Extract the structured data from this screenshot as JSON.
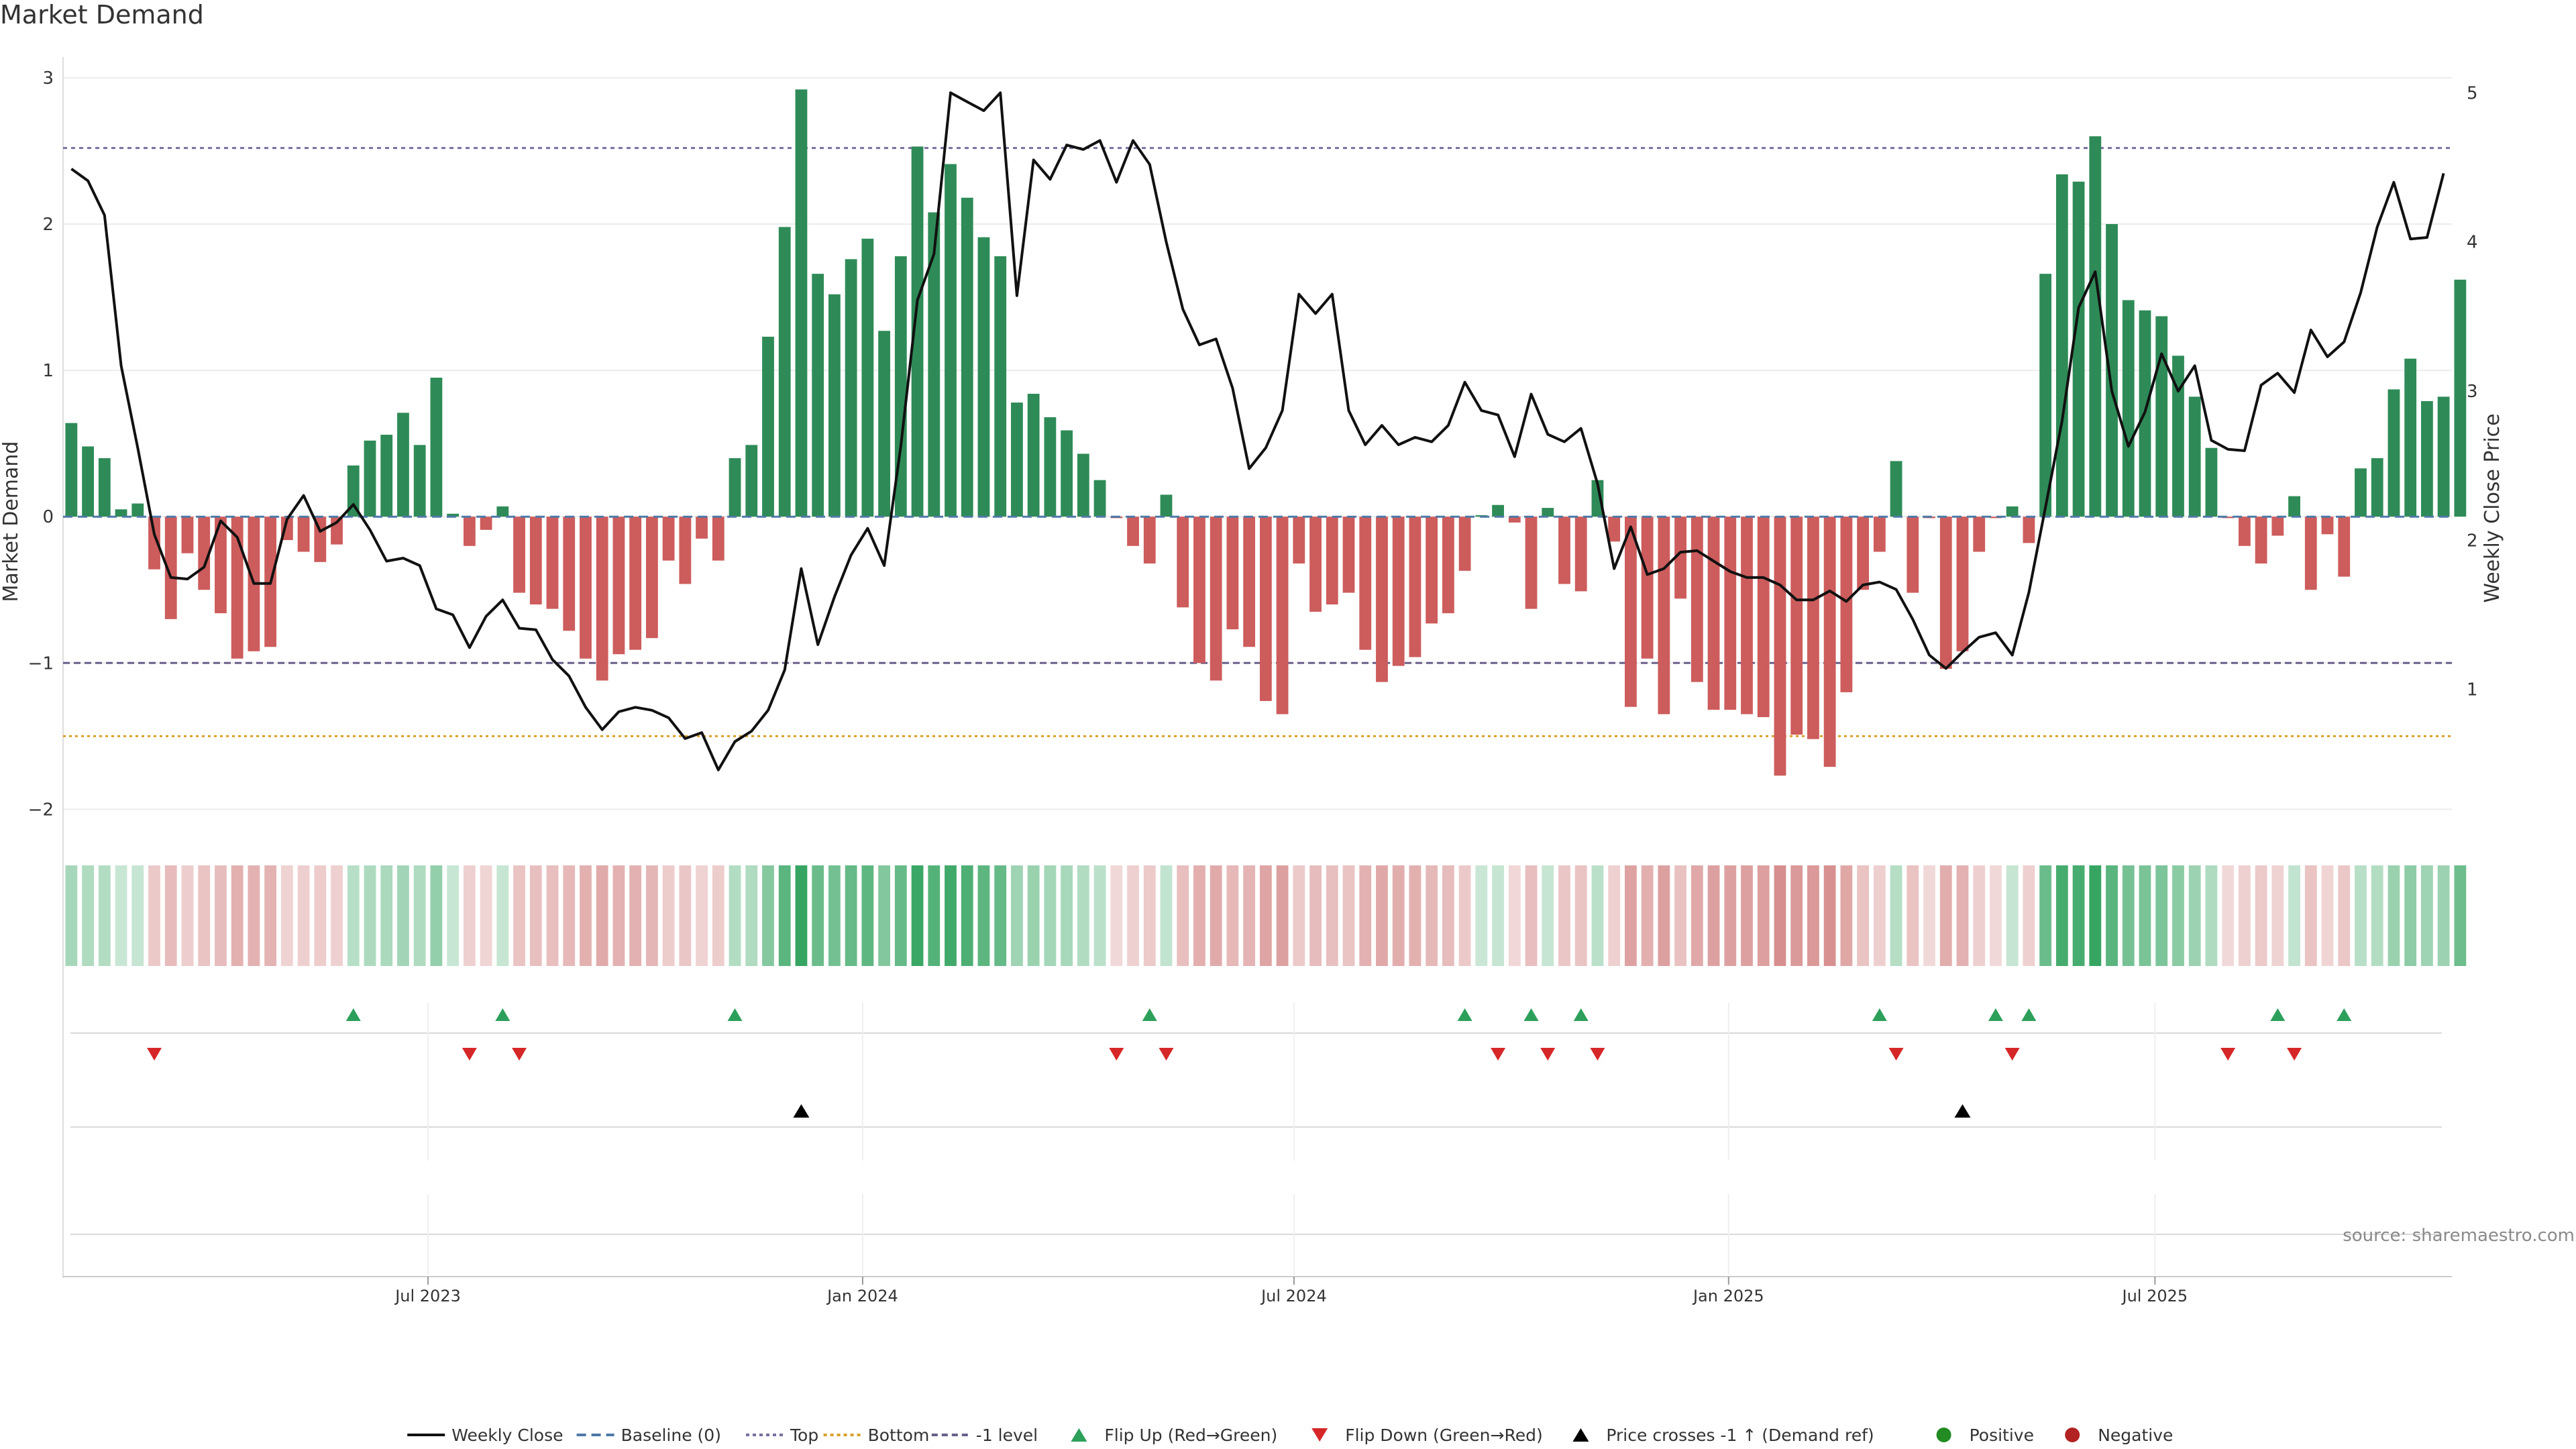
{
  "chart_data": {
    "type": "bar",
    "title": "Market Demand",
    "ylabel": "Market Demand",
    "y2label": "Weekly Close Price",
    "source": "source: sharemaestro.com",
    "ylim": [
      -2.2,
      3.05
    ],
    "y2lim": [
      0.0,
      5.15
    ],
    "yticks": [
      3,
      2,
      1,
      0,
      -1,
      -2
    ],
    "yticklabels": [
      "3",
      "2",
      "1",
      "0",
      "−1",
      "−2"
    ],
    "y2ticks": [
      1,
      2,
      3,
      4,
      5
    ],
    "reference_lines": {
      "top": 2.52,
      "bottom": -1.5,
      "minus_one": -1.0
    },
    "xticks": [
      "Jul 2023",
      "Jan 2024",
      "Jul 2024",
      "Jan 2025",
      "Jul 2025"
    ],
    "xtick_weeks": [
      21.5,
      47.7,
      73.7,
      99.9,
      125.6
    ],
    "weeks": 144,
    "demand": [
      0.64,
      0.48,
      0.4,
      0.05,
      0.09,
      -0.36,
      -0.7,
      -0.25,
      -0.5,
      -0.66,
      -0.97,
      -0.92,
      -0.89,
      -0.16,
      -0.24,
      -0.31,
      -0.19,
      0.35,
      0.52,
      0.56,
      0.71,
      0.49,
      0.95,
      0.02,
      -0.2,
      -0.09,
      0.07,
      -0.52,
      -0.6,
      -0.63,
      -0.78,
      -0.97,
      -1.12,
      -0.94,
      -0.91,
      -0.83,
      -0.3,
      -0.46,
      -0.15,
      -0.3,
      0.4,
      0.49,
      1.23,
      1.98,
      2.92,
      1.66,
      1.52,
      1.76,
      1.9,
      1.27,
      1.78,
      2.53,
      2.08,
      2.41,
      2.18,
      1.91,
      1.78,
      0.78,
      0.84,
      0.68,
      0.59,
      0.43,
      0.25,
      -0.01,
      -0.2,
      -0.32,
      0.15,
      -0.62,
      -1.0,
      -1.12,
      -0.77,
      -0.89,
      -1.26,
      -1.35,
      -0.32,
      -0.65,
      -0.6,
      -0.52,
      -0.91,
      -1.13,
      -1.02,
      -0.96,
      -0.73,
      -0.66,
      -0.37,
      0.01,
      0.08,
      -0.04,
      -0.63,
      0.06,
      -0.46,
      -0.51,
      0.25,
      -0.17,
      -1.3,
      -0.97,
      -1.35,
      -0.56,
      -1.13,
      -1.32,
      -1.32,
      -1.35,
      -1.37,
      -1.77,
      -1.49,
      -1.52,
      -1.71,
      -1.2,
      -0.5,
      -0.24,
      0.38,
      -0.52,
      -0.01,
      -1.04,
      -0.92,
      -0.24,
      -0.01,
      0.07,
      -0.18,
      1.66,
      2.34,
      2.29,
      2.6,
      2.0,
      1.48,
      1.41,
      1.37,
      1.1,
      0.82,
      0.47,
      -0.01,
      -0.2,
      -0.32,
      -0.13,
      0.14,
      -0.5,
      -0.12,
      -0.41,
      0.33,
      0.4,
      0.87,
      1.08,
      0.79,
      0.82,
      1.62
    ],
    "close": [
      4.49,
      4.41,
      4.18,
      3.17,
      2.62,
      2.04,
      1.75,
      1.74,
      1.82,
      2.13,
      2.02,
      1.71,
      1.71,
      2.14,
      2.3,
      2.06,
      2.12,
      2.24,
      2.07,
      1.86,
      1.88,
      1.83,
      1.54,
      1.5,
      1.28,
      1.49,
      1.6,
      1.41,
      1.4,
      1.2,
      1.09,
      0.88,
      0.73,
      0.85,
      0.88,
      0.86,
      0.81,
      0.67,
      0.71,
      0.46,
      0.65,
      0.72,
      0.86,
      1.13,
      1.81,
      1.3,
      1.62,
      1.9,
      2.08,
      1.83,
      2.63,
      3.61,
      3.92,
      5.0,
      4.94,
      4.88,
      5.0,
      3.64,
      4.55,
      4.42,
      4.65,
      4.62,
      4.68,
      4.4,
      4.68,
      4.52,
      4.0,
      3.55,
      3.31,
      3.35,
      3.02,
      2.48,
      2.62,
      2.87,
      3.65,
      3.52,
      3.65,
      2.87,
      2.64,
      2.77,
      2.64,
      2.69,
      2.66,
      2.77,
      3.06,
      2.87,
      2.84,
      2.56,
      2.98,
      2.71,
      2.66,
      2.75,
      2.38,
      1.81,
      2.09,
      1.77,
      1.81,
      1.92,
      1.93,
      1.86,
      1.79,
      1.75,
      1.75,
      1.7,
      1.6,
      1.6,
      1.66,
      1.59,
      1.7,
      1.72,
      1.67,
      1.47,
      1.23,
      1.14,
      1.25,
      1.35,
      1.38,
      1.23,
      1.65,
      2.22,
      2.8,
      3.56,
      3.8,
      3.0,
      2.63,
      2.86,
      3.25,
      3.0,
      3.17,
      2.67,
      2.61,
      2.6,
      3.04,
      3.12,
      2.99,
      3.41,
      3.23,
      3.33,
      3.66,
      4.1,
      4.4,
      4.02,
      4.03,
      4.46
    ],
    "flip_up_weeks": [
      17,
      26,
      40,
      65,
      84,
      88,
      91,
      109,
      116,
      118,
      133,
      137
    ],
    "flip_down_weeks": [
      5,
      24,
      27,
      63,
      66,
      86,
      89,
      92,
      110,
      117,
      130,
      134
    ],
    "price_cross_weeks": [
      44,
      114
    ],
    "legend": [
      {
        "label": "Weekly Close",
        "kind": "line",
        "color": "#111111"
      },
      {
        "label": "Baseline (0)",
        "kind": "dash",
        "color": "#4e79a7"
      },
      {
        "label": "Top",
        "kind": "dot",
        "color": "#7a6fa0"
      },
      {
        "label": "Bottom",
        "kind": "dot",
        "color": "#d9a12a"
      },
      {
        "label": "-1 level",
        "kind": "dash2",
        "color": "#6a5f8a"
      },
      {
        "label": "Flip Up (Red→Green)",
        "kind": "tri-up",
        "color": "#2ca05a"
      },
      {
        "label": "Flip Down (Green→Red)",
        "kind": "tri-down",
        "color": "#d62728"
      },
      {
        "label": "Price crosses -1 ↑ (Demand ref)",
        "kind": "tri-up",
        "color": "#000000"
      },
      {
        "label": "Positive",
        "kind": "dot-circle",
        "color": "#228b22"
      },
      {
        "label": "Negative",
        "kind": "dot-circle",
        "color": "#b22222"
      }
    ],
    "colors": {
      "positive": "#2e8b57",
      "negative": "#cd5c5c",
      "price": "#111111"
    }
  }
}
